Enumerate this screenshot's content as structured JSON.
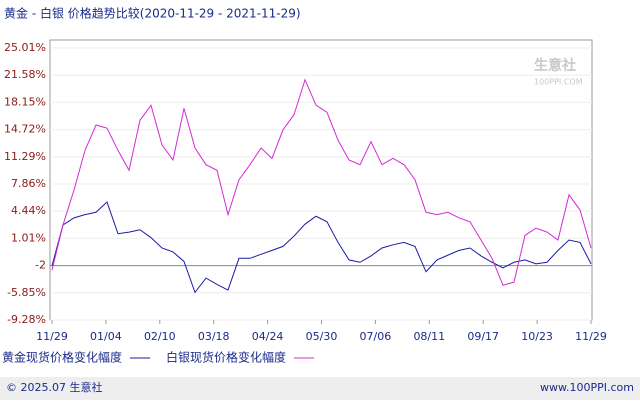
{
  "chart_data": {
    "type": "line",
    "title": "黄金 - 白银 价格趋势比较(2020-11-29 - 2021-11-29)",
    "xlim": [
      0,
      49
    ],
    "xticks": [
      {
        "value": 0,
        "label": "11/29"
      },
      {
        "value": 4.9,
        "label": "01/04"
      },
      {
        "value": 9.8,
        "label": "02/10"
      },
      {
        "value": 14.7,
        "label": "03/18"
      },
      {
        "value": 19.6,
        "label": "04/24"
      },
      {
        "value": 24.5,
        "label": "05/30"
      },
      {
        "value": 29.4,
        "label": "07/06"
      },
      {
        "value": 34.3,
        "label": "08/11"
      },
      {
        "value": 39.2,
        "label": "09/17"
      },
      {
        "value": 44.1,
        "label": "10/23"
      },
      {
        "value": 49,
        "label": "11/29"
      }
    ],
    "ylim": [
      -9.28,
      26.02
    ],
    "yticks": [
      {
        "value": 25.01,
        "label": "25.01%"
      },
      {
        "value": 21.58,
        "label": "21.58%"
      },
      {
        "value": 18.15,
        "label": "18.15%"
      },
      {
        "value": 14.72,
        "label": "14.72%"
      },
      {
        "value": 11.29,
        "label": "11.29%"
      },
      {
        "value": 7.86,
        "label": "7.86%"
      },
      {
        "value": 4.44,
        "label": "4.44%"
      },
      {
        "value": 1.01,
        "label": "1.01%"
      },
      {
        "value": -2.42,
        "label": "-2"
      },
      {
        "value": -5.85,
        "label": "-5.85%"
      },
      {
        "value": -9.28,
        "label": "-9.28%"
      }
    ],
    "grid": true,
    "series": [
      {
        "name": "黄金现货价格变化幅度",
        "color": "#1a1aa6",
        "values": [
          -2.45,
          2.7,
          3.6,
          4.0,
          4.3,
          5.6,
          1.6,
          1.8,
          2.1,
          1.1,
          -0.2,
          -0.7,
          -1.9,
          -5.8,
          -4.0,
          -4.8,
          -5.5,
          -1.5,
          -1.5,
          -1.0,
          -0.5,
          0.0,
          1.3,
          2.8,
          3.8,
          3.1,
          0.5,
          -1.7,
          -2.0,
          -1.2,
          -0.2,
          0.2,
          0.5,
          0.0,
          -3.2,
          -1.7,
          -1.1,
          -0.5,
          -0.2,
          -1.2,
          -2.0,
          -2.7,
          -2.0,
          -1.7,
          -2.2,
          -2.0,
          -0.5,
          0.8,
          0.5,
          -2.2
        ]
      },
      {
        "name": "白银现货价格变化幅度",
        "color": "#d42ad4",
        "values": [
          -3.0,
          2.7,
          7.1,
          12.1,
          15.3,
          14.9,
          12.1,
          9.6,
          15.9,
          17.8,
          12.8,
          10.9,
          17.4,
          12.4,
          10.3,
          9.6,
          4.0,
          8.4,
          10.3,
          12.4,
          11.1,
          14.7,
          16.6,
          21.0,
          17.8,
          16.9,
          13.4,
          10.9,
          10.3,
          13.2,
          10.3,
          11.1,
          10.3,
          8.4,
          4.3,
          4.0,
          4.3,
          3.6,
          3.1,
          0.8,
          -1.5,
          -4.9,
          -4.5,
          1.4,
          2.3,
          1.8,
          0.8,
          6.5,
          4.6,
          -0.2
        ]
      }
    ]
  },
  "watermark": {
    "name": "生意社",
    "site": "100PPI.COM"
  },
  "footer": {
    "copyright": "© 2025.07 生意社",
    "site": "www.100PPI.com"
  }
}
